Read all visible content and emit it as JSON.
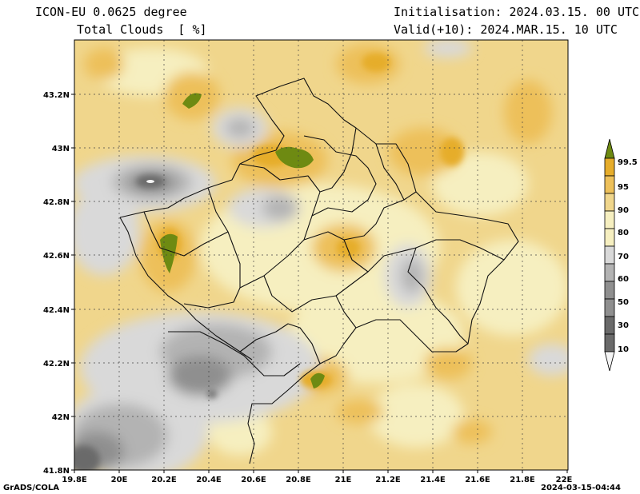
{
  "header": {
    "model": "ICON-EU 0.0625 degree",
    "variable": "Total Clouds  [ %]",
    "init": "Initialisation: 2024.03.15. 00 UTC",
    "valid": "Valid(+10): 2024.MAR.15. 10 UTC"
  },
  "footer": {
    "credit": "GrADS/COLA",
    "timestamp": "2024-03-15-04:44"
  },
  "axes": {
    "x_ticks": [
      "19.8E",
      "20E",
      "20.2E",
      "20.4E",
      "20.6E",
      "20.8E",
      "21E",
      "21.2E",
      "21.4E",
      "21.6E",
      "21.8E",
      "22E"
    ],
    "y_ticks": [
      "43.2N",
      "43N",
      "42.8N",
      "42.6N",
      "42.4N",
      "42.2N",
      "42N",
      "41.8N"
    ]
  },
  "legend": {
    "labels": [
      "99.5",
      "95",
      "90",
      "80",
      "70",
      "60",
      "50",
      "30",
      "10"
    ],
    "colors": [
      "#6e8a12",
      "#e6ad2b",
      "#edc05a",
      "#f0d68c",
      "#f6efc0",
      "#d9d9d9",
      "#b3b3b3",
      "#8f8f8f",
      "#6a6a6a",
      "#f4f4f4"
    ]
  }
}
